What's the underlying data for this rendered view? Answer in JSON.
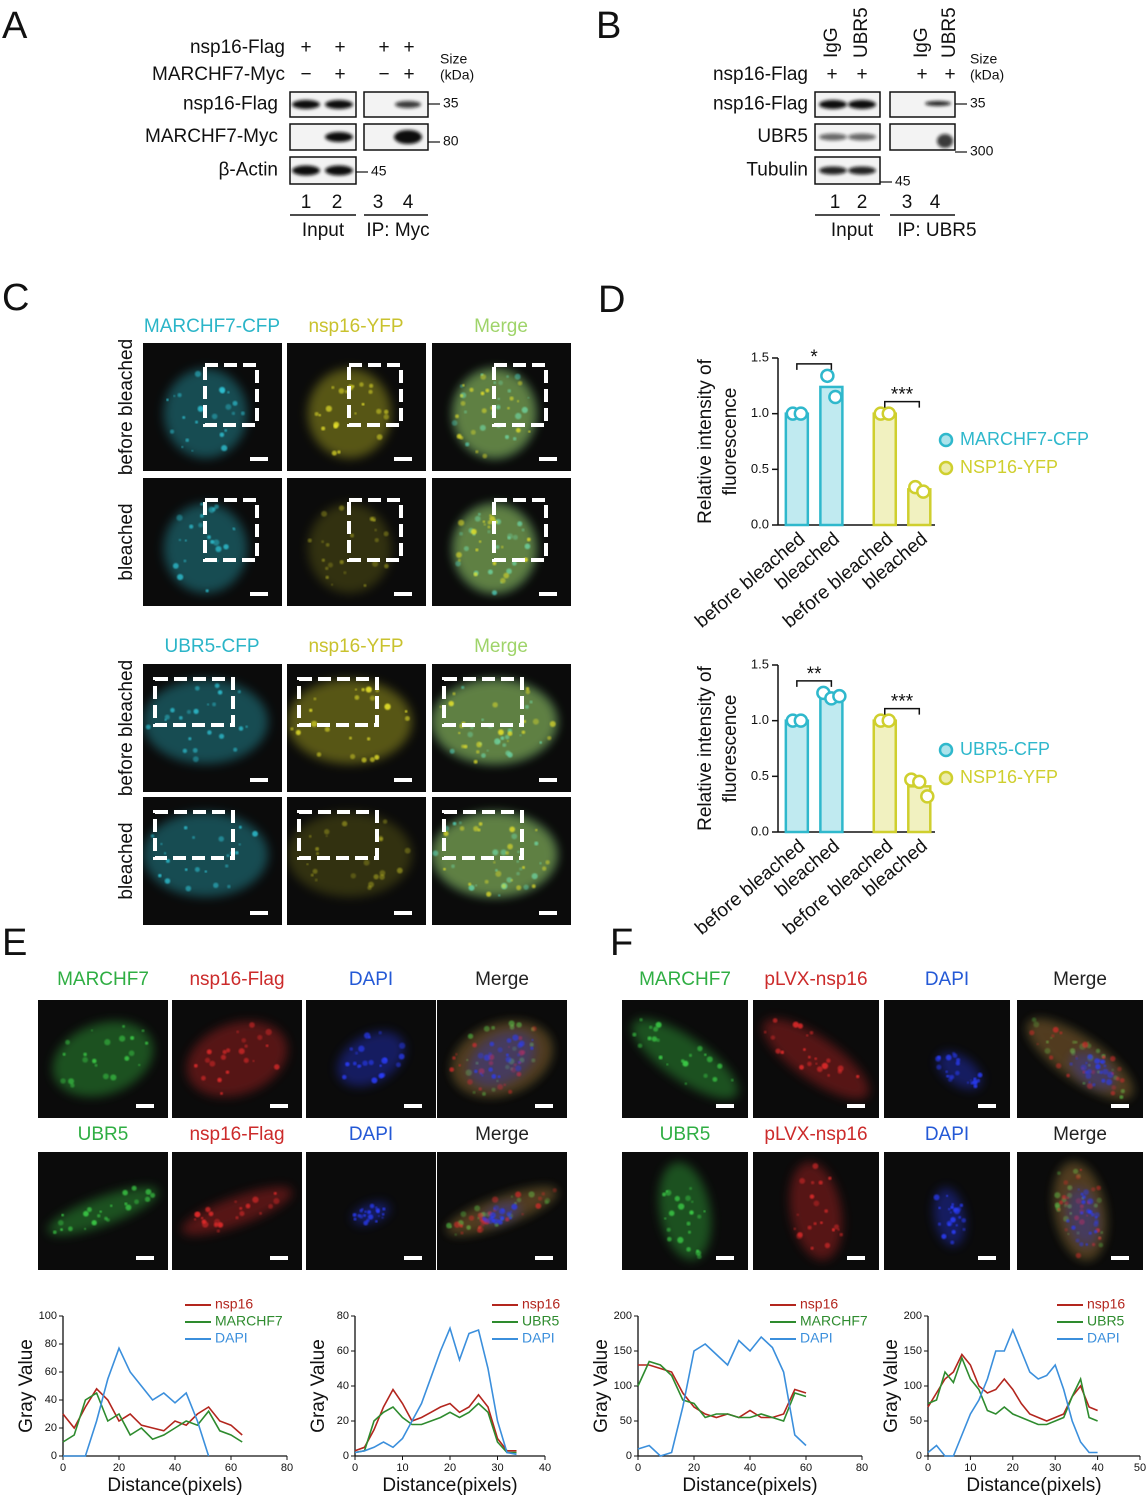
{
  "panel_letters": [
    "A",
    "B",
    "C",
    "D",
    "E",
    "F"
  ],
  "blot_a": {
    "conditions": [
      {
        "label": "nsp16-Flag",
        "signs": [
          "+",
          "+",
          "+",
          "+"
        ]
      },
      {
        "label": "MARCHF7-Myc",
        "signs": [
          "−",
          "+",
          "−",
          "+"
        ]
      }
    ],
    "size_label": [
      "Size",
      "(kDa)"
    ],
    "rows": [
      "nsp16-Flag",
      "MARCHF7-Myc",
      "β-Actin"
    ],
    "markers": [
      35,
      80,
      45
    ],
    "lanes": [
      1,
      2,
      3,
      4
    ],
    "groups": [
      "Input",
      "IP: Myc"
    ]
  },
  "blot_b": {
    "lane_headers": [
      "IgG",
      "UBR5",
      "IgG",
      "UBR5"
    ],
    "conditions": [
      {
        "label": "nsp16-Flag",
        "signs": [
          "+",
          "+",
          "+",
          "+"
        ]
      }
    ],
    "size_label": [
      "Size",
      "(kDa)"
    ],
    "rows": [
      "nsp16-Flag",
      "UBR5",
      "Tubulin"
    ],
    "markers": [
      35,
      300,
      45
    ],
    "lanes": [
      1,
      2,
      3,
      4
    ],
    "groups": [
      "Input",
      "IP: UBR5"
    ]
  },
  "panel_c": [
    {
      "channels": [
        "MARCHF7-CFP",
        "nsp16-YFP",
        "Merge"
      ],
      "conditions": [
        "before bleached",
        "bleached"
      ]
    },
    {
      "channels": [
        "UBR5-CFP",
        "nsp16-YFP",
        "Merge"
      ],
      "conditions": [
        "before bleached",
        "bleached"
      ]
    }
  ],
  "panel_e": [
    {
      "channels": [
        "MARCHF7",
        "nsp16-Flag",
        "DAPI",
        "Merge"
      ]
    },
    {
      "channels": [
        "UBR5",
        "nsp16-Flag",
        "DAPI",
        "Merge"
      ]
    }
  ],
  "panel_f": [
    {
      "channels": [
        "MARCHF7",
        "pLVX-nsp16",
        "DAPI",
        "Merge"
      ]
    },
    {
      "channels": [
        "UBR5",
        "pLVX-nsp16",
        "DAPI",
        "Merge"
      ]
    }
  ],
  "chart_data": [
    {
      "type": "bar",
      "categories": [
        "before bleached",
        "bleached",
        "before bleached",
        "bleached"
      ],
      "series": [
        {
          "name": "MARCHF7-CFP",
          "color": "#2fb8cc",
          "values": [
            1.0,
            1.24,
            null,
            null
          ],
          "points": [
            [
              1.0,
              1.0
            ],
            [
              1.34,
              1.15
            ],
            null,
            null
          ]
        },
        {
          "name": "NSP16-YFP",
          "color": "#cfcf2e",
          "values": [
            null,
            null,
            1.0,
            0.32
          ],
          "points": [
            null,
            null,
            [
              1.0,
              1.0
            ],
            [
              0.34,
              0.3
            ]
          ]
        }
      ],
      "annotations": [
        "*",
        "***"
      ],
      "ylabel": [
        "Relative intensity of",
        "fluorescence"
      ],
      "ylim": [
        0,
        1.5
      ],
      "yticks": [
        {
          "value": 0,
          "label": "0.0"
        },
        0.5,
        {
          "value": 1,
          "label": "1.0"
        },
        1.5
      ]
    },
    {
      "type": "bar",
      "categories": [
        "before bleached",
        "bleached",
        "before bleached",
        "bleached"
      ],
      "series": [
        {
          "name": "UBR5-CFP",
          "color": "#2fb8cc",
          "values": [
            1.0,
            1.22,
            null,
            null
          ],
          "points": [
            [
              1.0,
              1.0
            ],
            [
              1.25,
              1.2,
              1.22
            ],
            null,
            null
          ]
        },
        {
          "name": "NSP16-YFP",
          "color": "#cfcf2e",
          "values": [
            null,
            null,
            1.0,
            0.41
          ],
          "points": [
            null,
            null,
            [
              1.0,
              1.0
            ],
            [
              0.47,
              0.45,
              0.32
            ]
          ]
        }
      ],
      "annotations": [
        "**",
        "***"
      ],
      "ylabel": [
        "Relative intensity of",
        "fluorescence"
      ],
      "ylim": [
        0,
        1.5
      ],
      "yticks": [
        {
          "value": 0,
          "label": "0.0"
        },
        0.5,
        {
          "value": 1,
          "label": "1.0"
        },
        1.5
      ]
    },
    {
      "type": "line",
      "x": [
        0,
        4,
        8,
        12,
        16,
        20,
        24,
        28,
        32,
        36,
        40,
        44,
        48,
        52,
        56,
        60,
        64
      ],
      "series": [
        {
          "name": "nsp16",
          "color": "#b3261e",
          "values": [
            30,
            20,
            35,
            48,
            40,
            25,
            30,
            22,
            20,
            18,
            25,
            22,
            30,
            35,
            25,
            22,
            15
          ]
        },
        {
          "name": "MARCHF7",
          "color": "#2e8b2e",
          "values": [
            10,
            15,
            40,
            45,
            25,
            30,
            15,
            20,
            12,
            15,
            20,
            25,
            22,
            32,
            18,
            15,
            10
          ]
        },
        {
          "name": "DAPI",
          "color": "#3b8fdc",
          "values": [
            0,
            0,
            0,
            25,
            55,
            77,
            60,
            50,
            40,
            45,
            38,
            45,
            25,
            0,
            null,
            null,
            null
          ]
        }
      ],
      "xlabel": "Distance(pixels)",
      "ylabel": "Gray Value",
      "xlim": [
        0,
        80
      ],
      "xticks": [
        0,
        20,
        40,
        60,
        80
      ],
      "ylim": [
        0,
        100
      ],
      "yticks": [
        0,
        20,
        40,
        60,
        80,
        100
      ]
    },
    {
      "type": "line",
      "x": [
        0,
        2,
        4,
        6,
        8,
        10,
        12,
        14,
        16,
        18,
        20,
        22,
        24,
        26,
        28,
        30,
        32,
        34
      ],
      "series": [
        {
          "name": "nsp16",
          "color": "#b3261e",
          "values": [
            3,
            5,
            15,
            28,
            38,
            30,
            20,
            22,
            25,
            28,
            30,
            25,
            28,
            35,
            28,
            10,
            3,
            3
          ]
        },
        {
          "name": "UBR5",
          "color": "#2e8b2e",
          "values": [
            2,
            3,
            20,
            25,
            28,
            22,
            18,
            18,
            20,
            22,
            25,
            22,
            25,
            30,
            25,
            8,
            2,
            2
          ]
        },
        {
          "name": "DAPI",
          "color": "#3b8fdc",
          "values": [
            2,
            3,
            5,
            8,
            5,
            10,
            20,
            30,
            45,
            60,
            73,
            55,
            70,
            72,
            50,
            20,
            2,
            1
          ]
        }
      ],
      "xlabel": "Distance(pixels)",
      "ylabel": "Gray Value",
      "xlim": [
        0,
        40
      ],
      "xticks": [
        0,
        10,
        20,
        30,
        40
      ],
      "ylim": [
        0,
        80
      ],
      "yticks": [
        0,
        20,
        40,
        60,
        80
      ]
    },
    {
      "type": "line",
      "x": [
        0,
        4,
        8,
        12,
        16,
        20,
        24,
        28,
        32,
        36,
        40,
        44,
        48,
        52,
        56,
        60
      ],
      "series": [
        {
          "name": "nsp16",
          "color": "#b3261e",
          "values": [
            130,
            130,
            125,
            120,
            90,
            70,
            60,
            55,
            60,
            55,
            65,
            55,
            55,
            60,
            95,
            90
          ]
        },
        {
          "name": "MARCHF7",
          "color": "#2e8b2e",
          "values": [
            100,
            135,
            130,
            115,
            80,
            75,
            55,
            60,
            60,
            55,
            55,
            60,
            55,
            50,
            90,
            85
          ]
        },
        {
          "name": "DAPI",
          "color": "#3b8fdc",
          "values": [
            10,
            15,
            0,
            5,
            70,
            150,
            160,
            145,
            130,
            165,
            150,
            170,
            155,
            120,
            30,
            15
          ]
        }
      ],
      "xlabel": "Distance(pixels)",
      "ylabel": "Gray Value",
      "xlim": [
        0,
        80
      ],
      "xticks": [
        0,
        20,
        40,
        60,
        80
      ],
      "ylim": [
        0,
        200
      ],
      "yticks": [
        0,
        50,
        100,
        150,
        200
      ]
    },
    {
      "type": "line",
      "x": [
        0,
        2,
        4,
        6,
        8,
        10,
        12,
        14,
        16,
        18,
        20,
        22,
        24,
        26,
        28,
        30,
        32,
        34,
        36,
        38,
        40
      ],
      "series": [
        {
          "name": "nsp16",
          "color": "#b3261e",
          "values": [
            70,
            90,
            110,
            120,
            145,
            130,
            100,
            90,
            95,
            110,
            95,
            75,
            60,
            55,
            50,
            55,
            60,
            85,
            100,
            70,
            65
          ]
        },
        {
          "name": "UBR5",
          "color": "#2e8b2e",
          "values": [
            75,
            80,
            120,
            105,
            140,
            110,
            95,
            65,
            60,
            70,
            60,
            55,
            50,
            45,
            45,
            50,
            55,
            85,
            110,
            55,
            50
          ]
        },
        {
          "name": "DAPI",
          "color": "#3b8fdc",
          "values": [
            5,
            15,
            0,
            0,
            30,
            60,
            80,
            110,
            150,
            150,
            180,
            150,
            120,
            110,
            115,
            130,
            95,
            50,
            20,
            5,
            5
          ]
        }
      ],
      "xlabel": "Distance(pixels)",
      "ylabel": "Gray Value",
      "xlim": [
        0,
        50
      ],
      "xticks": [
        0,
        10,
        20,
        30,
        40,
        50
      ],
      "ylim": [
        0,
        200
      ],
      "yticks": [
        0,
        50,
        100,
        150,
        200
      ]
    }
  ]
}
